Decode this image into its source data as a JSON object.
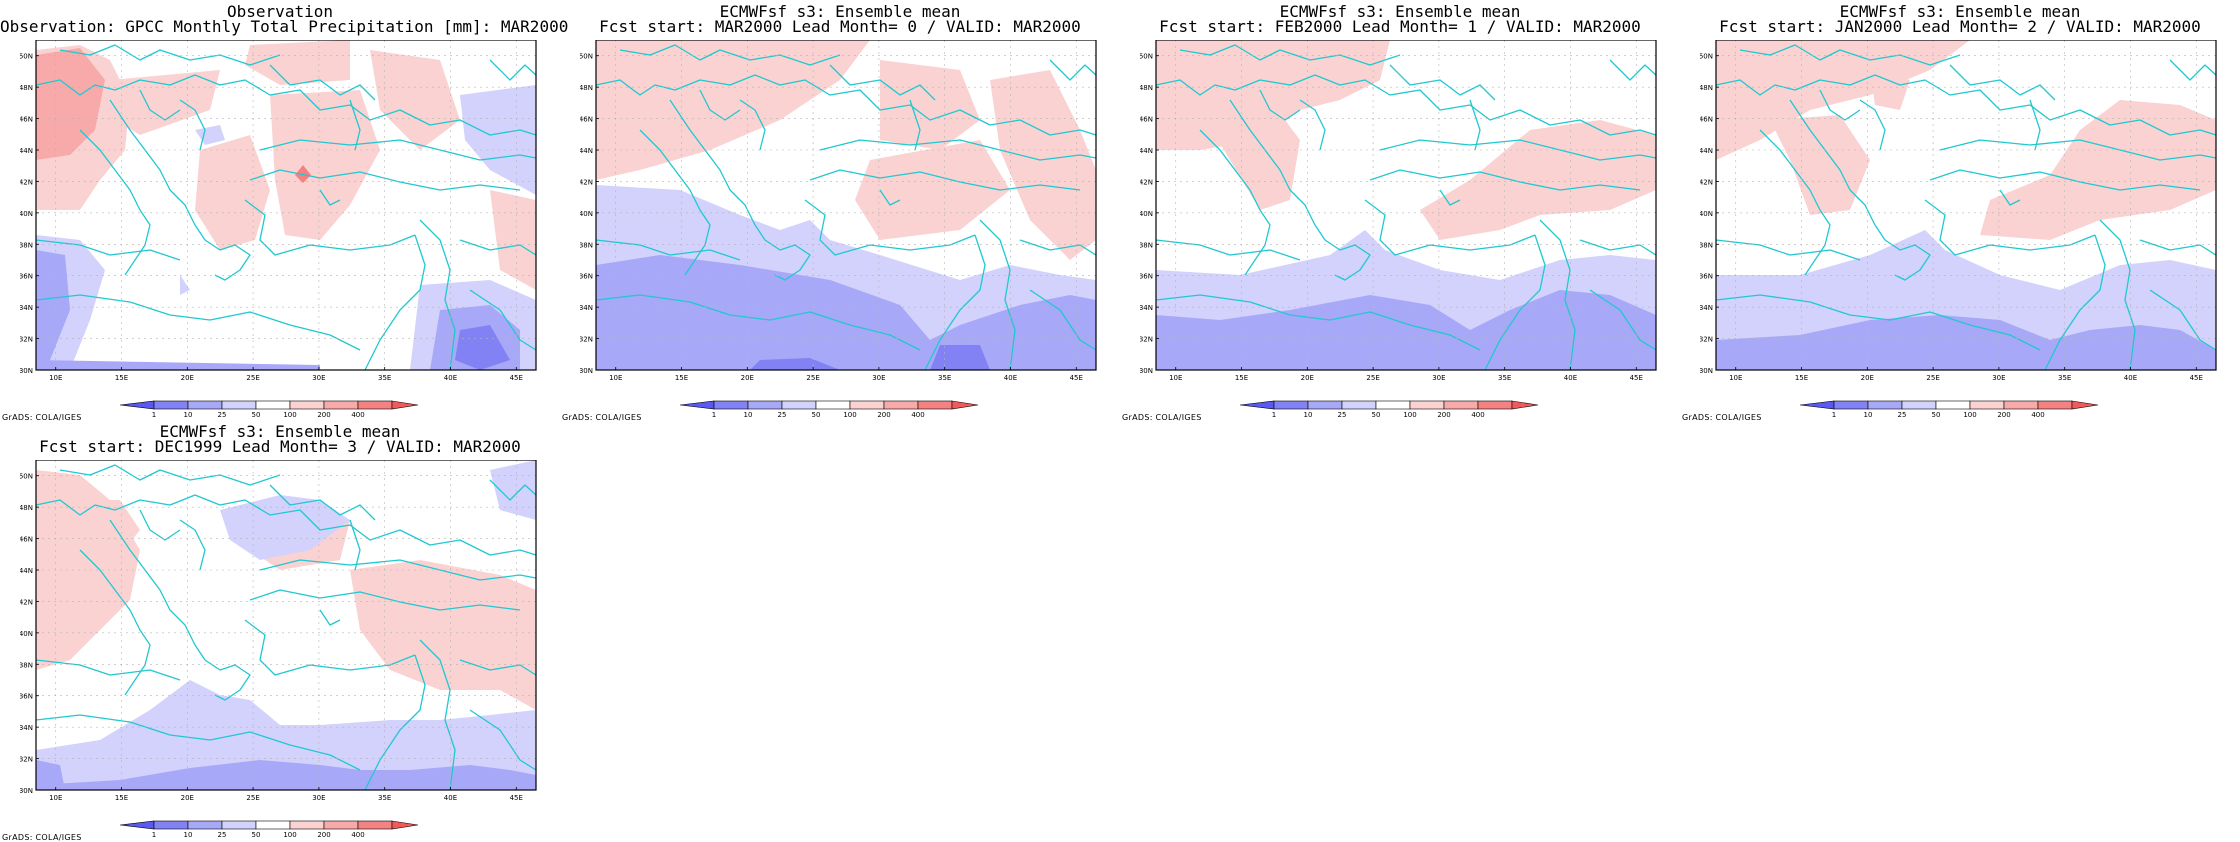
{
  "credit": "GrADS: COLA/IGES",
  "colorbar": {
    "labels": [
      "1",
      "10",
      "25",
      "50",
      "100",
      "200",
      "400"
    ],
    "colors": [
      "#5a5af0",
      "#8282f5",
      "#a8a8f8",
      "#d2d2fc",
      "#ffffff",
      "#fad2d2",
      "#f8aaaa",
      "#f58282",
      "#f05a5a"
    ]
  },
  "axes": {
    "lon_labels": [
      "10E",
      "15E",
      "20E",
      "25E",
      "30E",
      "35E",
      "40E",
      "45E"
    ],
    "lat_labels": [
      "50N",
      "48N",
      "46N",
      "44N",
      "42N",
      "40N",
      "38N",
      "36N",
      "34N",
      "32N",
      "30N"
    ],
    "lon_range": [
      8.5,
      46.5
    ],
    "lat_range": [
      30,
      51
    ]
  },
  "colors": {
    "coast": "#20c8d0",
    "frame": "#000000",
    "grid": "#b4b4b4"
  },
  "panels": [
    {
      "title1": "Observation",
      "title2": "Observation: GPCC Monthly Total Precipitation [mm]: MAR2000"
    },
    {
      "title1": "ECMWFsf s3: Ensemble mean",
      "title2": "Fcst start: MAR2000  Lead Month= 0 / VALID: MAR2000"
    },
    {
      "title1": "ECMWFsf s3: Ensemble mean",
      "title2": "Fcst start: FEB2000  Lead Month= 1 / VALID: MAR2000"
    },
    {
      "title1": "ECMWFsf s3: Ensemble mean",
      "title2": "Fcst start: JAN2000  Lead Month= 2 / VALID: MAR2000"
    },
    {
      "title1": "ECMWFsf s3: Ensemble mean",
      "title2": "Fcst start: DEC1999  Lead Month= 3 / VALID: MAR2000"
    }
  ]
}
